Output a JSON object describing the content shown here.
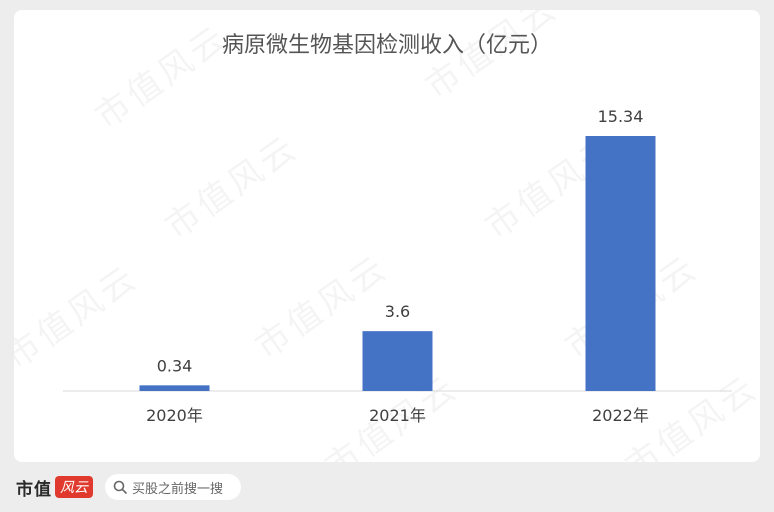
{
  "chart_data": {
    "type": "bar",
    "title": "病原微生物基因检测收入（亿元）",
    "categories": [
      "2020年",
      "2021年",
      "2022年"
    ],
    "values": [
      0.34,
      3.6,
      15.34
    ],
    "data_labels": [
      "0.34",
      "3.6",
      "15.34"
    ],
    "ylim": [
      0,
      15.34
    ],
    "grid": false,
    "legend": "none",
    "bar_color": "#4472c4"
  },
  "watermark": "市值风云",
  "footer": {
    "brand": "市值",
    "brand_seal": "风云",
    "search_placeholder": "买股之前搜一搜"
  }
}
